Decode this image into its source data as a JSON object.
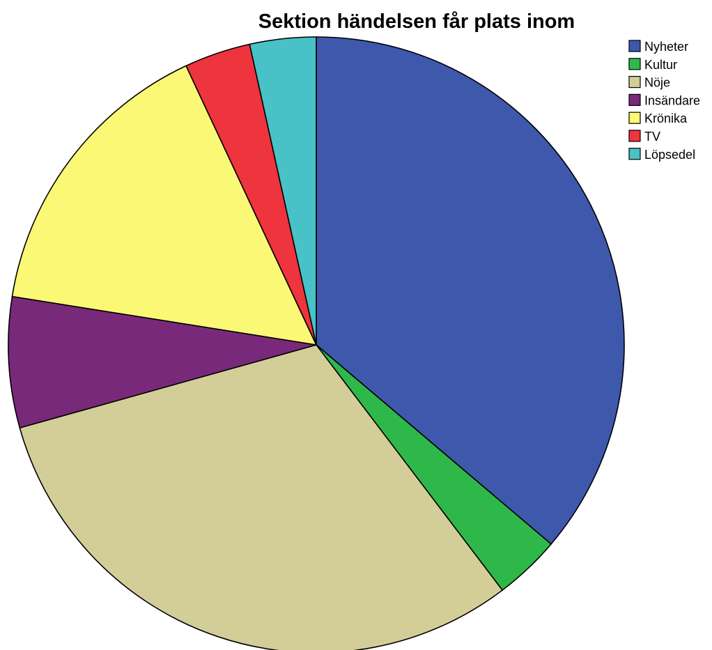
{
  "chart_data": {
    "type": "pie",
    "title": "Sektion händelsen får plats inom",
    "start_angle_deg": 0,
    "direction": "clockwise",
    "legend_position": "top-right",
    "slices": [
      {
        "label": "Nyheter",
        "value": 37.5,
        "color": "#3E58AC"
      },
      {
        "label": "Kultur",
        "value": 3.6,
        "color": "#2FB84A"
      },
      {
        "label": "Nöje",
        "value": 32.1,
        "color": "#D3CE98"
      },
      {
        "label": "Insändare",
        "value": 7.1,
        "color": "#79297A"
      },
      {
        "label": "Krönika",
        "value": 16.1,
        "color": "#FBF875"
      },
      {
        "label": "TV",
        "value": 3.6,
        "color": "#EE343C"
      },
      {
        "label": "Löpsedel",
        "value": 3.6,
        "color": "#49C2C7"
      }
    ]
  }
}
